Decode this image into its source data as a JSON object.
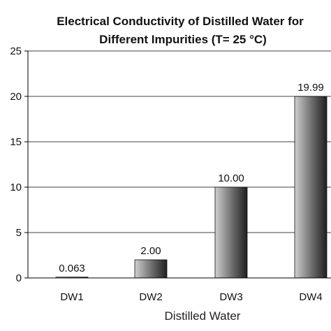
{
  "chart_data": {
    "type": "bar",
    "title_lines": [
      "Electrical Conductivity of Distilled Water for",
      "Different Impurities (T= 25 °C)"
    ],
    "xlabel": "Distilled Water",
    "ylabel": "",
    "categories": [
      "DW1",
      "DW2",
      "DW3",
      "DW4"
    ],
    "values": [
      0.063,
      2.0,
      10.0,
      19.99
    ],
    "data_labels": [
      "0.063",
      "2.00",
      "10.00",
      "19.99"
    ],
    "ylim": [
      0,
      25
    ],
    "yticks": [
      "0",
      "5",
      "10",
      "15",
      "20",
      "25"
    ],
    "grid": true,
    "legend": "none",
    "colors": {
      "bar_light": "#cfcfcf",
      "bar_dark": "#1f1f1f",
      "grid": "#000000"
    }
  }
}
